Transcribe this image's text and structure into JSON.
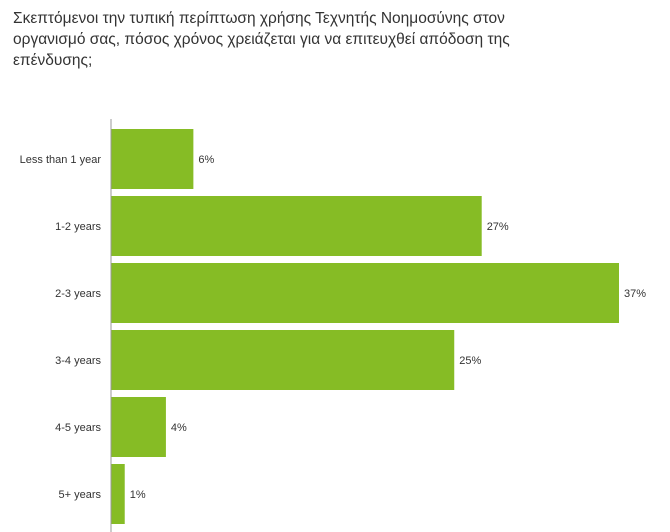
{
  "chart_data": {
    "type": "bar",
    "orientation": "horizontal",
    "title": "Σκεπτόμενοι την τυπική περίπτωση χρήσης Τεχνητής Νοημοσύνης στον οργανισμό σας, πόσος χρόνος χρειάζεται για να επιτευχθεί απόδοση της επένδυσης;",
    "categories": [
      "Less than 1 year",
      "1-2 years",
      "2-3 years",
      "3-4 years",
      "4-5 years",
      "5+ years"
    ],
    "values": [
      6,
      27,
      37,
      25,
      4,
      1
    ],
    "data_labels": [
      "6%",
      "27%",
      "37%",
      "25%",
      "4%",
      "1%"
    ],
    "value_unit": "%",
    "xlim": [
      0,
      37
    ],
    "grid": false,
    "legend": "none",
    "bar_color": "#86bc25",
    "axis_color": "#999999",
    "text_color": "#333333"
  }
}
